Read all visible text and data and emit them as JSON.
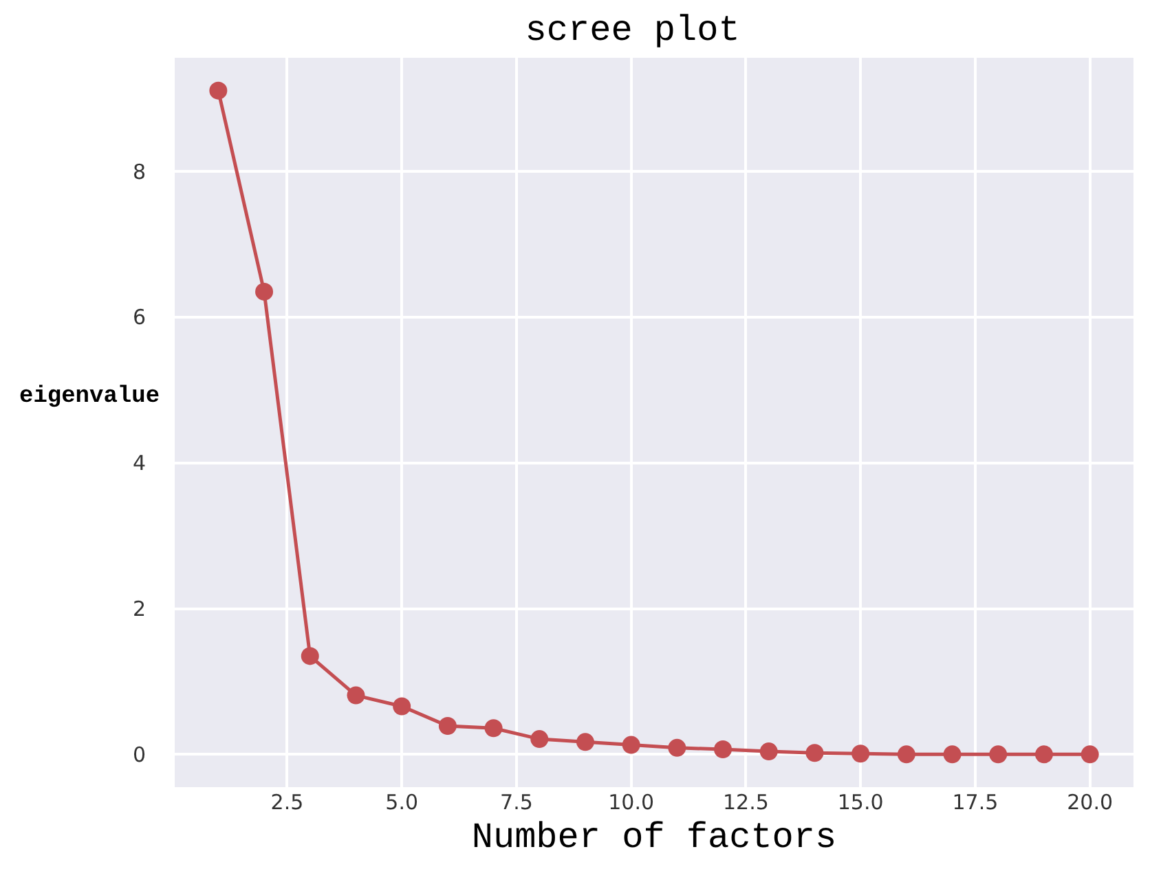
{
  "chart_data": {
    "type": "line",
    "title": "scree plot",
    "xlabel": "Number of factors",
    "ylabel": "eigenvalue",
    "x": [
      1,
      2,
      3,
      4,
      5,
      6,
      7,
      8,
      9,
      10,
      11,
      12,
      13,
      14,
      15,
      16,
      17,
      18,
      19,
      20
    ],
    "series": [
      {
        "color": "#c44e52",
        "values": [
          9.11,
          6.35,
          1.35,
          0.81,
          0.66,
          0.39,
          0.36,
          0.21,
          0.17,
          0.13,
          0.09,
          0.07,
          0.04,
          0.02,
          0.01,
          0,
          0,
          0,
          0,
          0
        ]
      }
    ],
    "xlim": [
      0.05,
      20.95
    ],
    "ylim": [
      -0.45,
      9.56
    ],
    "xticks": [
      {
        "value": 2.5,
        "label": "2.5"
      },
      {
        "value": 5,
        "label": "5.0"
      },
      {
        "value": 7.5,
        "label": "7.5"
      },
      {
        "value": 10,
        "label": "10.0"
      },
      {
        "value": 12.5,
        "label": "12.5"
      },
      {
        "value": 15,
        "label": "15.0"
      },
      {
        "value": 17.5,
        "label": "17.5"
      },
      {
        "value": 20,
        "label": "20.0"
      }
    ],
    "yticks": [
      0,
      2,
      4,
      6,
      8
    ],
    "grid": true,
    "marker": "circle",
    "line_style": "solid"
  }
}
